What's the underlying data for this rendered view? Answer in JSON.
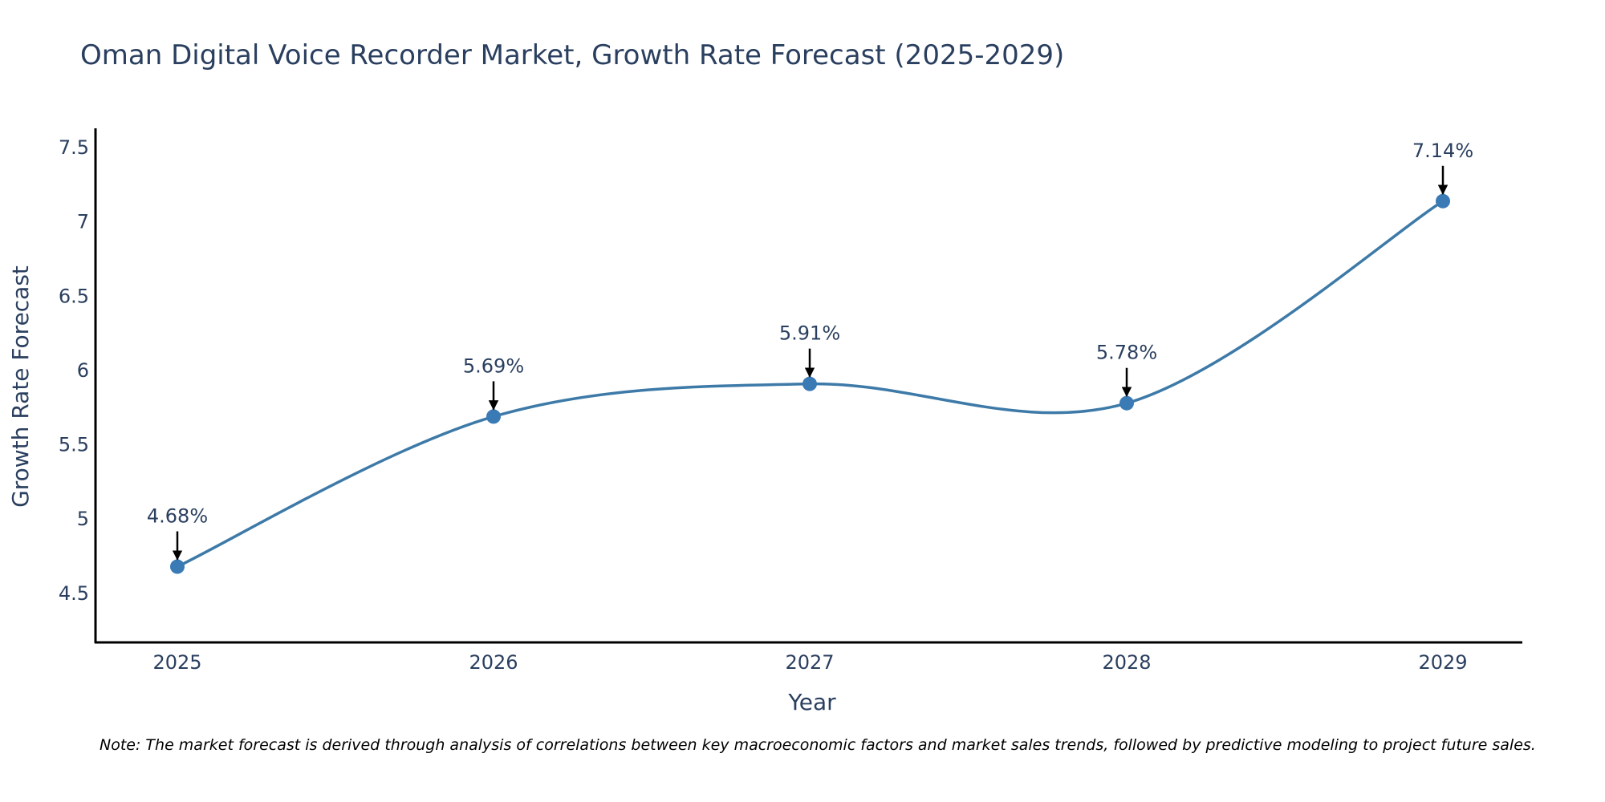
{
  "colors": {
    "line": "#3d7aa8",
    "marker": "#3a7ab5",
    "text": "#2a3f5f",
    "axis": "#000000",
    "arrow": "#000000"
  },
  "chart_data": {
    "type": "line",
    "title": "Oman Digital Voice Recorder Market, Growth Rate Forecast (2025-2029)",
    "xlabel": "Year",
    "ylabel": "Growth Rate Forecast",
    "categories": [
      "2025",
      "2026",
      "2027",
      "2028",
      "2029"
    ],
    "series": [
      {
        "name": "Growth Rate Forecast",
        "values": [
          4.68,
          5.69,
          5.91,
          5.78,
          7.14
        ],
        "labels": [
          "4.68%",
          "5.69%",
          "5.91%",
          "5.78%",
          "7.14%"
        ]
      }
    ],
    "ylim": [
      4.17,
      7.63
    ],
    "yticks": [
      4.5,
      5,
      5.5,
      6,
      6.5,
      7,
      7.5
    ],
    "ytick_labels": [
      "4.5",
      "5",
      "5.5",
      "6",
      "6.5",
      "7",
      "7.5"
    ],
    "grid": false,
    "line_shape": "spline"
  },
  "note": "Note: The market forecast is derived through analysis of correlations between key macroeconomic factors and market sales trends, followed by predictive modeling to project future sales."
}
